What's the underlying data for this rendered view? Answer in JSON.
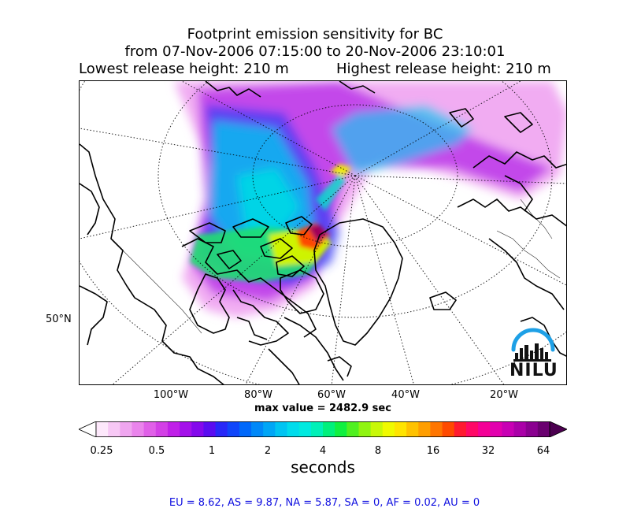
{
  "title": {
    "line1": "Footprint emission sensitivity for BC",
    "line2": "from 07-Nov-2006 07:15:00 to 20-Nov-2006 23:10:01",
    "release_low": "Lowest release height: 210 m",
    "release_high": "Highest release height: 210 m"
  },
  "map": {
    "longitude_labels": [
      "100°W",
      "80°W",
      "60°W",
      "40°W",
      "20°W"
    ],
    "latitude_labels": [
      "50°N"
    ],
    "max_value": "max value = 2482.9 sec",
    "logo_text": "NILU"
  },
  "colorbar": {
    "ticks": [
      "0.25",
      "0.5",
      "1",
      "2",
      "4",
      "8",
      "16",
      "32",
      "64"
    ],
    "label": "seconds",
    "colors": [
      "#fde8fb",
      "#f7c8f5",
      "#f0a6f0",
      "#ea84ec",
      "#e060e8",
      "#d340e6",
      "#c020e8",
      "#a410ea",
      "#8408ec",
      "#5a0cf0",
      "#2828f8",
      "#1046fa",
      "#0068fa",
      "#0088f8",
      "#00a6f6",
      "#00c4f2",
      "#00dcec",
      "#00eae0",
      "#00f0b8",
      "#00f07c",
      "#10f040",
      "#50f020",
      "#90f410",
      "#c8f808",
      "#f0fa00",
      "#ffe400",
      "#ffc200",
      "#ff9e00",
      "#ff7600",
      "#ff4a00",
      "#ff1a30",
      "#ff0866",
      "#f40096",
      "#e200ae",
      "#c800b4",
      "#aa00a8",
      "#8a0090",
      "#6a0070"
    ],
    "under_color": "#ffffff",
    "over_color": "#4c0050"
  },
  "regions": "EU = 8.62,  AS = 9.87,  NA = 5.87,  SA = 0,  AF = 0.02,  AU = 0"
}
